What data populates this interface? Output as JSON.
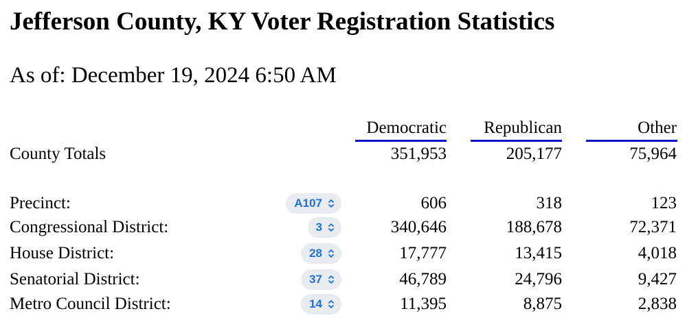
{
  "title": "Jefferson County, KY Voter Registration Statistics",
  "as_of": "As of: December 19, 2024 6:50 AM",
  "columns": {
    "democratic": "Democratic",
    "republican": "Republican",
    "other": "Other"
  },
  "colors": {
    "underline": "#0b13c7",
    "select_text": "#1f6fd6",
    "select_bg": "#e8ecf1"
  },
  "county_totals": {
    "label": "County Totals",
    "democratic": "351,953",
    "republican": "205,177",
    "other": "75,964"
  },
  "rows": [
    {
      "label": "Precinct:",
      "selected": "A107",
      "democratic": "606",
      "republican": "318",
      "other": "123"
    },
    {
      "label": "Congressional District:",
      "selected": "3",
      "democratic": "340,646",
      "republican": "188,678",
      "other": "72,371"
    },
    {
      "label": "House District:",
      "selected": "28",
      "democratic": "17,777",
      "republican": "13,415",
      "other": "4,018"
    },
    {
      "label": "Senatorial District:",
      "selected": "37",
      "democratic": "46,789",
      "republican": "24,796",
      "other": "9,427"
    },
    {
      "label": "Metro Council District:",
      "selected": "14",
      "democratic": "11,395",
      "republican": "8,875",
      "other": "2,838"
    }
  ],
  "icons": {
    "select_chevron": "chevron-up-down-icon"
  }
}
